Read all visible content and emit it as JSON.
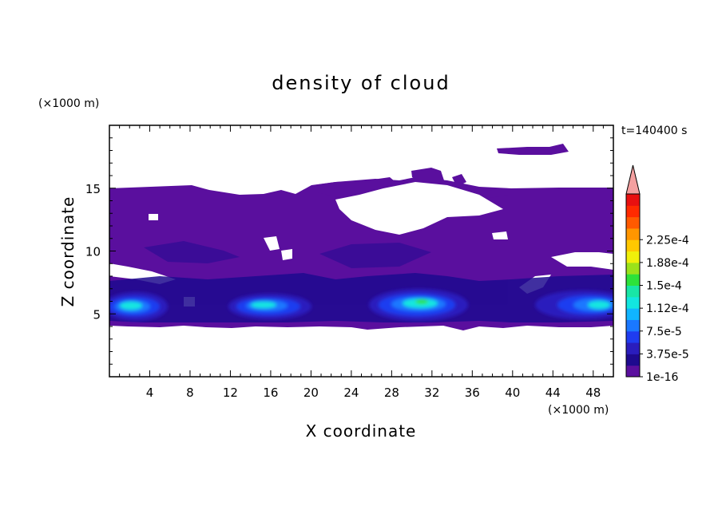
{
  "chart_data": {
    "type": "heatmap",
    "title": "density of cloud",
    "xlabel": "X coordinate",
    "ylabel": "Z coordinate",
    "x_unit": "(×1000 m)",
    "y_unit": "(×1000 m)",
    "time_label": "t=140400 s",
    "xlim": [
      0,
      50
    ],
    "ylim": [
      0,
      20
    ],
    "x_ticks": [
      4,
      8,
      12,
      16,
      20,
      24,
      28,
      32,
      36,
      40,
      44,
      48
    ],
    "y_ticks": [
      5,
      10,
      15
    ],
    "colorbar": {
      "levels": [
        "1e-16",
        "3.75e-5",
        "7.5e-5",
        "1.12e-4",
        "1.5e-4",
        "1.88e-4",
        "2.25e-4"
      ],
      "colors": [
        "#5a0f9e",
        "#1e0a8f",
        "#2a1dbd",
        "#1f3cf0",
        "#1a78ff",
        "#10b5ff",
        "#12e6e0",
        "#18e6a6",
        "#2de23a",
        "#9be21a",
        "#f0f00a",
        "#ffc800",
        "#ff9600",
        "#ff5a00",
        "#ff2a00",
        "#e81010",
        "#f4a0a0"
      ]
    },
    "cloud_base_km": 4.2,
    "cloud_top_km": 15,
    "cores": [
      {
        "x": 3.5,
        "z": 5.6,
        "peak": "1.12e-4"
      },
      {
        "x": 15.5,
        "z": 5.5,
        "peak": "1.12e-4"
      },
      {
        "x": 31.0,
        "z": 6.0,
        "peak": "1.5e-4"
      },
      {
        "x": 47.0,
        "z": 5.5,
        "peak": "1.12e-4"
      }
    ]
  }
}
